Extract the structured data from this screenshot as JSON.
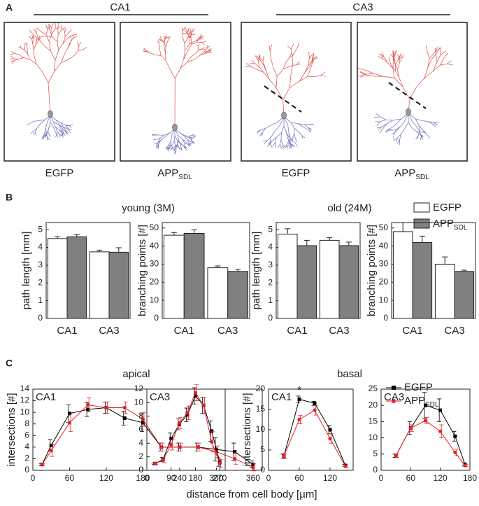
{
  "panel_a": {
    "label": "A",
    "groups": [
      "CA1",
      "CA3"
    ],
    "captions": [
      {
        "text": "EGFP"
      },
      {
        "text": "APP",
        "sub": "SDL"
      },
      {
        "text": "EGFP"
      },
      {
        "text": "APP",
        "sub": "SDL"
      }
    ]
  },
  "panel_b": {
    "label": "B",
    "titles": [
      "young (3M)",
      "old (24M)"
    ],
    "legend": [
      {
        "name": "EGFP",
        "color": "#ffffff"
      },
      {
        "name": "APP",
        "sub": "SDL",
        "color": "#808080"
      }
    ]
  },
  "panel_c": {
    "label": "C",
    "titles": [
      "apical",
      "basal"
    ],
    "xlabel": "distance from cell body [µm]",
    "legend": [
      {
        "name": "EGFP",
        "color": "#000000",
        "marker": "square"
      },
      {
        "name": "APP",
        "sub": "SDL",
        "color": "#e8202a",
        "marker": "circle"
      }
    ]
  },
  "chart_data": [
    {
      "type": "bar",
      "ylabel": "path length [mm]",
      "categories": [
        "CA1",
        "CA3"
      ],
      "series": [
        {
          "color": "#ffffff",
          "values": [
            4.5,
            3.75
          ],
          "errors": [
            0.1,
            0.1
          ]
        },
        {
          "color": "#808080",
          "values": [
            4.6,
            3.73
          ],
          "errors": [
            0.12,
            0.25
          ]
        }
      ],
      "ylim": [
        0,
        5.4
      ],
      "yticks": [
        0,
        1,
        2,
        3,
        4,
        5
      ]
    },
    {
      "type": "bar",
      "ylabel": "branching points [#]",
      "categories": [
        "CA1",
        "CA3"
      ],
      "series": [
        {
          "color": "#ffffff",
          "values": [
            46,
            28
          ],
          "errors": [
            1.5,
            1
          ]
        },
        {
          "color": "#808080",
          "values": [
            47,
            26
          ],
          "errors": [
            2,
            1.2
          ]
        }
      ],
      "ylim": [
        0,
        53
      ],
      "yticks": [
        0,
        10,
        20,
        30,
        40,
        50
      ]
    },
    {
      "type": "bar",
      "ylabel": "path length [mm]",
      "categories": [
        "CA1",
        "CA3"
      ],
      "series": [
        {
          "color": "#ffffff",
          "values": [
            4.75,
            4.4
          ],
          "errors": [
            0.3,
            0.15
          ]
        },
        {
          "color": "#808080",
          "values": [
            4.1,
            4.1
          ],
          "errors": [
            0.3,
            0.2
          ]
        }
      ],
      "ylim": [
        0,
        5.4
      ],
      "yticks": [
        0,
        1,
        2,
        3,
        4,
        5
      ]
    },
    {
      "type": "bar",
      "ylabel": "branching points [#]",
      "categories": [
        "CA1",
        "CA3"
      ],
      "series": [
        {
          "color": "#ffffff",
          "values": [
            48,
            30
          ],
          "errors": [
            5,
            4
          ]
        },
        {
          "color": "#808080",
          "values": [
            42,
            26
          ],
          "errors": [
            3.5,
            0.7
          ]
        }
      ],
      "ylim": [
        0,
        53
      ],
      "yticks": [
        0,
        10,
        20,
        30,
        40,
        50
      ]
    },
    {
      "type": "line",
      "title": "CA1",
      "ylabel": "intersections [#]",
      "x": [
        15,
        30,
        60,
        90,
        120,
        150,
        180,
        210,
        240,
        270,
        300,
        330,
        360
      ],
      "series": [
        {
          "color": "#000000",
          "marker": "square",
          "values": [
            1,
            4.3,
            9.8,
            10.5,
            10.8,
            9,
            8.2,
            4,
            4,
            4,
            3.6,
            3.2,
            1
          ],
          "errors": [
            0.2,
            1,
            1.5,
            1.2,
            1,
            1.2,
            1.5,
            0.7,
            0.7,
            0.7,
            2,
            1.5,
            0.6
          ]
        },
        {
          "color": "#e8202a",
          "marker": "circle",
          "values": [
            1,
            3.4,
            8.2,
            11.3,
            10.8,
            10.8,
            8.8,
            4,
            4,
            4,
            3.2,
            2,
            0.5
          ],
          "errors": [
            0.2,
            1,
            1.5,
            1.2,
            1,
            1,
            1.2,
            0.7,
            0.7,
            0.7,
            1,
            1,
            0.6
          ]
        }
      ],
      "xlim": [
        0,
        375
      ],
      "xticks": [
        0,
        60,
        120,
        180,
        240,
        300,
        360
      ],
      "ylim": [
        0,
        14
      ],
      "yticks": [
        0,
        2,
        4,
        6,
        8,
        10,
        12,
        14
      ]
    },
    {
      "type": "line",
      "title": "CA3",
      "x": [
        30,
        60,
        90,
        120,
        150,
        180,
        210,
        240,
        270
      ],
      "series": [
        {
          "color": "#000000",
          "marker": "square",
          "values": [
            1,
            1.6,
            4.7,
            6.8,
            8.2,
            11,
            9.6,
            5.8,
            1.2
          ],
          "errors": [
            0.1,
            0.3,
            0.8,
            0.8,
            1,
            1.2,
            1.2,
            1.5,
            0.6
          ]
        },
        {
          "color": "#e8202a",
          "marker": "circle",
          "values": [
            1,
            1.5,
            3.8,
            7,
            8.5,
            11.5,
            9.6,
            4.2,
            1
          ],
          "errors": [
            0.1,
            0.3,
            0.8,
            0.8,
            1,
            1.2,
            1.2,
            1.5,
            0.6
          ]
        }
      ],
      "xlim": [
        0,
        290
      ],
      "xticks": [
        0,
        90,
        180,
        270
      ],
      "ylim": [
        0,
        12
      ],
      "yticks": [
        0,
        2,
        4,
        6,
        8,
        10,
        12
      ]
    },
    {
      "type": "line",
      "title": "CA1",
      "ylabel": "intersections [#]",
      "x": [
        30,
        60,
        90,
        120,
        150
      ],
      "series": [
        {
          "color": "#000000",
          "marker": "square",
          "values": [
            3.5,
            17.5,
            16.5,
            10,
            1.2
          ],
          "errors": [
            0.5,
            0.8,
            0.5,
            1,
            0.3
          ]
        },
        {
          "color": "#e8202a",
          "marker": "circle",
          "values": [
            3.5,
            12.5,
            14.8,
            7.8,
            1
          ],
          "errors": [
            0.6,
            1,
            1.2,
            1.2,
            0.3
          ]
        }
      ],
      "annotations": [
        {
          "text": "*",
          "x": 60
        }
      ],
      "xlim": [
        0,
        165
      ],
      "xticks": [
        0,
        60,
        120
      ],
      "ylim": [
        0,
        20
      ],
      "yticks": [
        0,
        5,
        10,
        15,
        20
      ]
    },
    {
      "type": "line",
      "title": "CA3",
      "x": [
        30,
        60,
        90,
        120,
        150,
        170
      ],
      "series": [
        {
          "color": "#000000",
          "marker": "square",
          "values": [
            4.5,
            13,
            20,
            18.5,
            10.5,
            1.8
          ],
          "errors": [
            0.5,
            2,
            4,
            3.5,
            1.5,
            0.5
          ]
        },
        {
          "color": "#e8202a",
          "marker": "circle",
          "values": [
            4.5,
            13,
            15.3,
            12,
            5.5,
            1.5
          ],
          "errors": [
            0.5,
            1,
            1,
            2,
            1,
            0.3
          ]
        }
      ],
      "xlim": [
        0,
        180
      ],
      "xticks": [
        0,
        60,
        120,
        180
      ],
      "ylim": [
        0,
        25
      ],
      "yticks": [
        0,
        5,
        10,
        15,
        20,
        25
      ]
    }
  ]
}
